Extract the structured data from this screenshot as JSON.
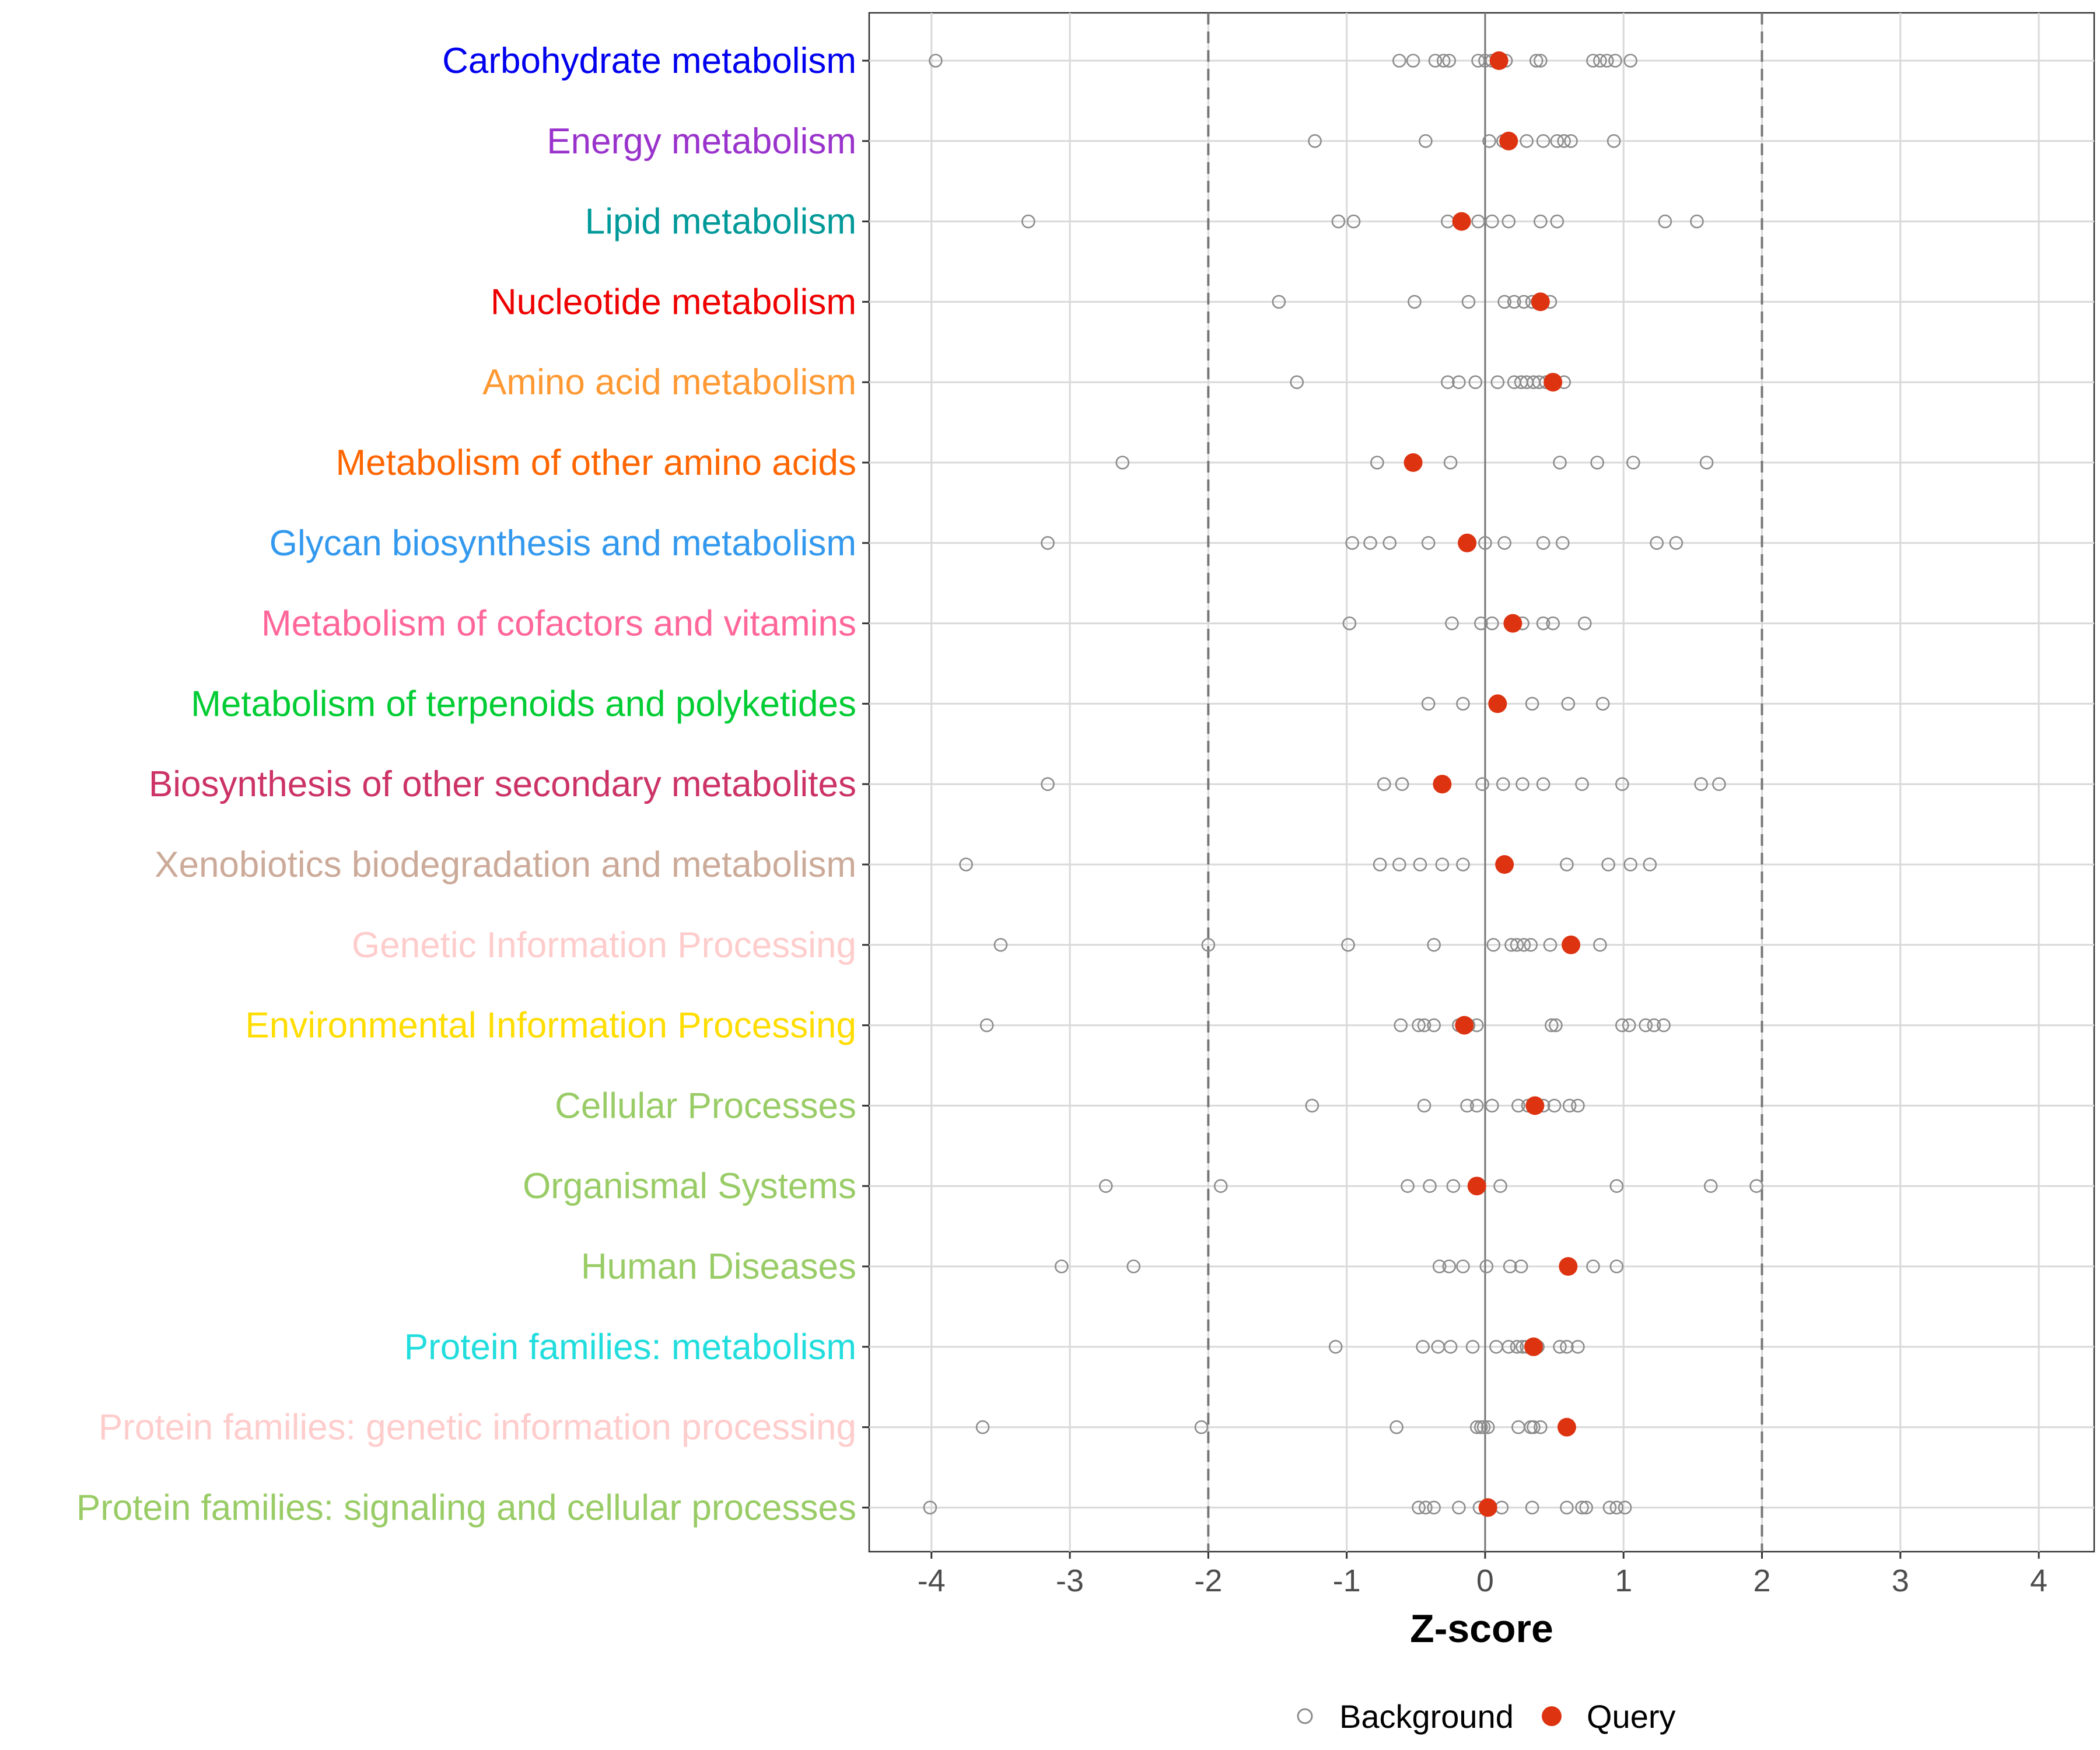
{
  "chart_data": {
    "type": "scatter",
    "xlabel": "Z-score",
    "xlim": [
      -4.45,
      4.4
    ],
    "xticks": [
      -4,
      -3,
      -2,
      -1,
      0,
      1,
      2,
      3,
      4
    ],
    "xtick_labels": [
      "-4",
      "-3",
      "-2",
      "-1",
      "0",
      "1",
      "2",
      "3",
      "4"
    ],
    "threshold_lines": [
      -2,
      2
    ],
    "zero_line": 0,
    "grid": true,
    "legend_position": "bottom",
    "legend": [
      {
        "name": "Background",
        "marker": "open-circle",
        "color": "#8c8c8c"
      },
      {
        "name": "Query",
        "marker": "filled-circle",
        "color": "#dd3311"
      }
    ],
    "categories": [
      {
        "label": "Carbohydrate metabolism",
        "color": "#0000ee",
        "query": 0.1,
        "background": [
          -3.97,
          -0.62,
          -0.52,
          -0.36,
          -0.3,
          -0.26,
          -0.05,
          0.0,
          0.05,
          0.15,
          0.37,
          0.4,
          0.78,
          0.83,
          0.88,
          0.94,
          1.05
        ]
      },
      {
        "label": "Energy metabolism",
        "color": "#9933cc",
        "query": 0.17,
        "background": [
          -1.23,
          -0.43,
          0.03,
          0.13,
          0.3,
          0.42,
          0.52,
          0.57,
          0.62,
          0.93
        ]
      },
      {
        "label": "Lipid metabolism",
        "color": "#009999",
        "query": -0.17,
        "background": [
          -3.3,
          -1.06,
          -0.95,
          -0.27,
          -0.05,
          0.05,
          0.17,
          0.4,
          0.52,
          1.3,
          1.53
        ]
      },
      {
        "label": "Nucleotide metabolism",
        "color": "#ee0000",
        "query": 0.4,
        "background": [
          -1.49,
          -0.51,
          -0.12,
          0.14,
          0.21,
          0.28,
          0.34,
          0.38,
          0.47
        ]
      },
      {
        "label": "Amino acid metabolism",
        "color": "#ff9933",
        "query": 0.49,
        "background": [
          -1.36,
          -0.27,
          -0.19,
          -0.07,
          0.09,
          0.21,
          0.26,
          0.3,
          0.35,
          0.39,
          0.44,
          0.57
        ]
      },
      {
        "label": "Metabolism of other amino acids",
        "color": "#ff6600",
        "query": -0.52,
        "background": [
          -2.62,
          -0.78,
          -0.25,
          0.54,
          0.81,
          1.07,
          1.6
        ]
      },
      {
        "label": "Glycan biosynthesis and metabolism",
        "color": "#3399ee",
        "query": -0.13,
        "background": [
          -3.16,
          -0.96,
          -0.83,
          -0.69,
          -0.41,
          0.0,
          0.14,
          0.42,
          0.56,
          1.24,
          1.38
        ]
      },
      {
        "label": "Metabolism of cofactors and vitamins",
        "color": "#ff6699",
        "query": 0.2,
        "background": [
          -0.98,
          -0.24,
          -0.03,
          0.05,
          0.27,
          0.42,
          0.49,
          0.72
        ]
      },
      {
        "label": "Metabolism of terpenoids and polyketides",
        "color": "#00cc33",
        "query": 0.09,
        "background": [
          -0.41,
          -0.16,
          0.34,
          0.6,
          0.85
        ]
      },
      {
        "label": "Biosynthesis of other secondary metabolites",
        "color": "#cc3366",
        "query": -0.31,
        "background": [
          -3.16,
          -0.73,
          -0.6,
          -0.02,
          0.13,
          0.27,
          0.42,
          0.7,
          0.99,
          1.56,
          1.69
        ]
      },
      {
        "label": "Xenobiotics biodegradation and metabolism",
        "color": "#ccaa99",
        "query": 0.14,
        "background": [
          -3.75,
          -0.76,
          -0.62,
          -0.47,
          -0.31,
          -0.16,
          0.59,
          0.89,
          1.05,
          1.19
        ]
      },
      {
        "label": "Genetic Information Processing",
        "color": "#ffcccc",
        "query": 0.62,
        "background": [
          -3.5,
          -2.0,
          -0.99,
          -0.37,
          0.06,
          0.19,
          0.23,
          0.28,
          0.33,
          0.47,
          0.83
        ]
      },
      {
        "label": "Environmental Information Processing",
        "color": "#ffdd00",
        "query": -0.15,
        "background": [
          -3.6,
          -0.61,
          -0.48,
          -0.44,
          -0.37,
          -0.19,
          -0.12,
          -0.06,
          0.48,
          0.51,
          0.99,
          1.04,
          1.16,
          1.22,
          1.29
        ]
      },
      {
        "label": "Cellular Processes",
        "color": "#99cc66",
        "query": 0.36,
        "background": [
          -1.25,
          -0.44,
          -0.13,
          -0.06,
          0.05,
          0.24,
          0.31,
          0.42,
          0.5,
          0.61,
          0.67
        ]
      },
      {
        "label": "Organismal Systems",
        "color": "#99cc66",
        "query": -0.06,
        "background": [
          -2.74,
          -1.91,
          -0.56,
          -0.4,
          -0.23,
          0.11,
          0.95,
          1.63,
          1.96
        ]
      },
      {
        "label": "Human Diseases",
        "color": "#99cc66",
        "query": 0.6,
        "background": [
          -3.06,
          -2.54,
          -0.33,
          -0.26,
          -0.16,
          0.01,
          0.18,
          0.26,
          0.78,
          0.95
        ]
      },
      {
        "label": "Protein families: metabolism",
        "color": "#22dddd",
        "query": 0.35,
        "background": [
          -1.08,
          -0.45,
          -0.34,
          -0.25,
          -0.09,
          0.08,
          0.17,
          0.23,
          0.27,
          0.3,
          0.38,
          0.54,
          0.59,
          0.67
        ]
      },
      {
        "label": "Protein families: genetic information processing",
        "color": "#ffcccc",
        "query": 0.59,
        "background": [
          -3.63,
          -2.05,
          -0.64,
          -0.06,
          -0.03,
          -0.01,
          0.02,
          0.24,
          0.33,
          0.35,
          0.4,
          0.6
        ]
      },
      {
        "label": "Protein families: signaling and cellular processes",
        "color": "#99cc66",
        "query": 0.02,
        "background": [
          -4.01,
          -0.48,
          -0.43,
          -0.37,
          -0.19,
          -0.04,
          0.12,
          0.34,
          0.59,
          0.7,
          0.73,
          0.9,
          0.95,
          1.01
        ]
      }
    ]
  }
}
